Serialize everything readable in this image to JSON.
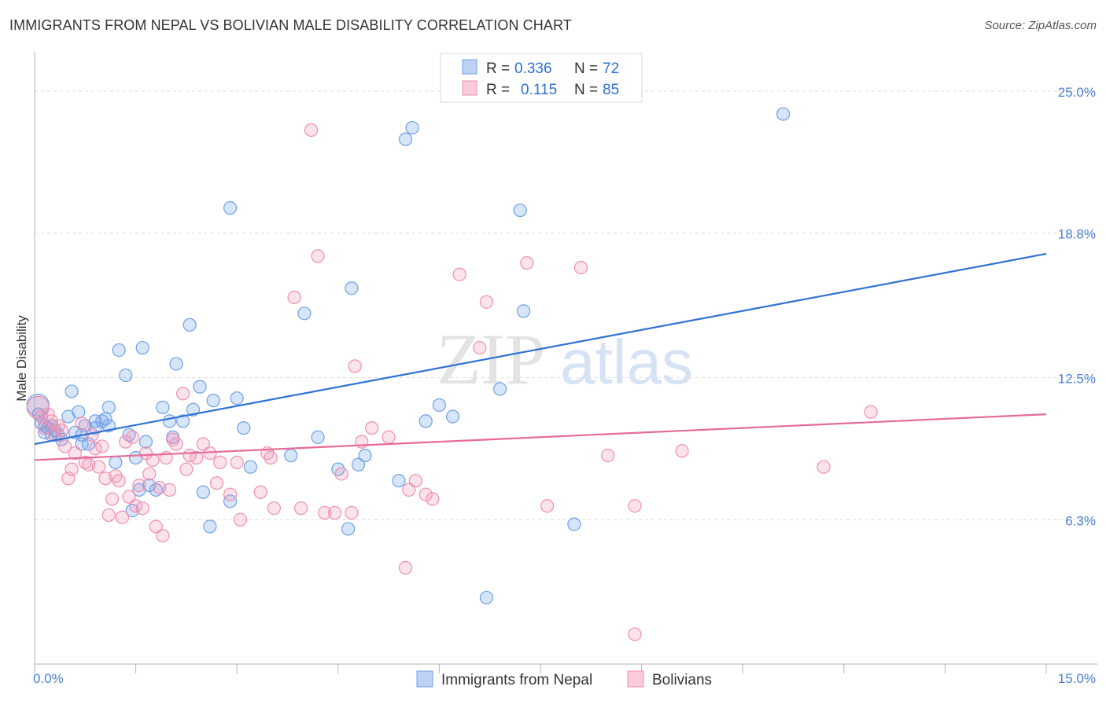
{
  "title": "IMMIGRANTS FROM NEPAL VS BOLIVIAN MALE DISABILITY CORRELATION CHART",
  "source": "Source: ZipAtlas.com",
  "watermark": {
    "zip": "ZIP",
    "atlas": "atlas"
  },
  "legend_top": [
    {
      "r_label": "R =",
      "r_value": "0.336",
      "n_label": "N =",
      "n_value": "72",
      "color": "#6fa0e8"
    },
    {
      "r_label": "R =",
      "r_value": "0.115",
      "n_label": "N =",
      "n_value": "85",
      "color": "#f08fb0"
    }
  ],
  "chart_data": {
    "type": "scatter",
    "xlabel": "",
    "ylabel": "Male Disability",
    "xlim": [
      0,
      15
    ],
    "ylim": [
      0,
      26.3
    ],
    "x_tick_labels": [
      "0.0%",
      "15.0%"
    ],
    "y_ticks": [
      6.3,
      12.5,
      18.8,
      25.0
    ],
    "y_tick_labels": [
      "6.3%",
      "12.5%",
      "18.8%",
      "25.0%"
    ],
    "grid": "horizontal-dashed",
    "legend_position": "bottom-center",
    "series": [
      {
        "name": "Immigrants from Nepal",
        "color": "#6fa0e8",
        "trend": {
          "x": [
            0,
            15
          ],
          "y": [
            9.6,
            17.9
          ]
        },
        "points": [
          [
            0.05,
            11.3
          ],
          [
            0.06,
            10.9
          ],
          [
            0.1,
            10.5
          ],
          [
            0.15,
            10.1
          ],
          [
            0.2,
            10.3
          ],
          [
            0.25,
            10.4
          ],
          [
            0.3,
            10.2
          ],
          [
            0.35,
            10.0
          ],
          [
            0.4,
            9.8
          ],
          [
            0.5,
            10.8
          ],
          [
            0.55,
            11.9
          ],
          [
            0.6,
            10.1
          ],
          [
            0.65,
            11.0
          ],
          [
            0.7,
            10.0
          ],
          [
            0.75,
            10.4
          ],
          [
            0.8,
            9.6
          ],
          [
            0.9,
            10.6
          ],
          [
            1.0,
            10.6
          ],
          [
            1.05,
            10.7
          ],
          [
            1.1,
            11.2
          ],
          [
            1.1,
            10.4
          ],
          [
            1.2,
            8.8
          ],
          [
            1.25,
            13.7
          ],
          [
            1.35,
            12.6
          ],
          [
            1.4,
            10.0
          ],
          [
            1.45,
            6.7
          ],
          [
            1.55,
            7.6
          ],
          [
            1.6,
            13.8
          ],
          [
            1.65,
            9.7
          ],
          [
            1.7,
            7.8
          ],
          [
            1.8,
            7.6
          ],
          [
            1.9,
            11.2
          ],
          [
            2.0,
            10.6
          ],
          [
            2.05,
            9.9
          ],
          [
            2.1,
            13.1
          ],
          [
            2.2,
            10.6
          ],
          [
            2.3,
            14.8
          ],
          [
            2.35,
            11.1
          ],
          [
            2.45,
            12.1
          ],
          [
            2.5,
            7.5
          ],
          [
            2.6,
            6.0
          ],
          [
            2.9,
            7.1
          ],
          [
            3.0,
            11.6
          ],
          [
            3.1,
            10.3
          ],
          [
            2.9,
            19.9
          ],
          [
            3.2,
            8.6
          ],
          [
            3.8,
            9.1
          ],
          [
            4.0,
            15.3
          ],
          [
            4.2,
            9.9
          ],
          [
            4.5,
            8.5
          ],
          [
            4.65,
            5.9
          ],
          [
            4.7,
            16.4
          ],
          [
            4.8,
            8.7
          ],
          [
            4.9,
            9.1
          ],
          [
            5.4,
            8.0
          ],
          [
            5.5,
            22.9
          ],
          [
            5.6,
            23.4
          ],
          [
            5.8,
            10.6
          ],
          [
            6.0,
            11.3
          ],
          [
            6.2,
            10.8
          ],
          [
            6.7,
            2.9
          ],
          [
            6.9,
            12.0
          ],
          [
            7.2,
            19.8
          ],
          [
            7.25,
            15.4
          ],
          [
            8.0,
            6.1
          ],
          [
            11.1,
            24.0
          ],
          [
            0.7,
            9.6
          ],
          [
            0.15,
            10.4
          ],
          [
            0.25,
            10.0
          ],
          [
            0.9,
            10.3
          ],
          [
            1.5,
            9.0
          ],
          [
            2.65,
            11.5
          ]
        ]
      },
      {
        "name": "Bolivians",
        "color": "#f08fb0",
        "trend": {
          "x": [
            0,
            15
          ],
          "y": [
            8.9,
            10.9
          ]
        },
        "points": [
          [
            0.05,
            11.2
          ],
          [
            0.1,
            10.8
          ],
          [
            0.15,
            10.3
          ],
          [
            0.2,
            10.9
          ],
          [
            0.25,
            10.6
          ],
          [
            0.3,
            10.0
          ],
          [
            0.35,
            10.4
          ],
          [
            0.4,
            10.2
          ],
          [
            0.45,
            9.5
          ],
          [
            0.5,
            8.1
          ],
          [
            0.55,
            8.5
          ],
          [
            0.6,
            9.2
          ],
          [
            0.7,
            10.5
          ],
          [
            0.75,
            8.8
          ],
          [
            0.8,
            8.7
          ],
          [
            0.85,
            10.0
          ],
          [
            0.9,
            9.4
          ],
          [
            0.95,
            8.6
          ],
          [
            1.0,
            9.5
          ],
          [
            1.05,
            8.1
          ],
          [
            1.1,
            6.5
          ],
          [
            1.15,
            7.2
          ],
          [
            1.2,
            8.2
          ],
          [
            1.25,
            8.0
          ],
          [
            1.3,
            6.4
          ],
          [
            1.35,
            9.7
          ],
          [
            1.4,
            7.3
          ],
          [
            1.45,
            9.9
          ],
          [
            1.5,
            6.9
          ],
          [
            1.55,
            7.8
          ],
          [
            1.6,
            6.8
          ],
          [
            1.65,
            9.2
          ],
          [
            1.7,
            8.3
          ],
          [
            1.75,
            8.9
          ],
          [
            1.8,
            6.0
          ],
          [
            1.85,
            7.7
          ],
          [
            1.9,
            5.6
          ],
          [
            1.95,
            9.0
          ],
          [
            2.0,
            7.6
          ],
          [
            2.05,
            9.8
          ],
          [
            2.1,
            9.6
          ],
          [
            2.2,
            11.8
          ],
          [
            2.25,
            8.5
          ],
          [
            2.3,
            9.1
          ],
          [
            2.4,
            9.0
          ],
          [
            2.5,
            9.6
          ],
          [
            2.6,
            9.2
          ],
          [
            2.7,
            7.9
          ],
          [
            2.75,
            8.8
          ],
          [
            2.9,
            7.4
          ],
          [
            3.0,
            8.8
          ],
          [
            3.05,
            6.3
          ],
          [
            3.35,
            7.5
          ],
          [
            3.45,
            9.2
          ],
          [
            3.5,
            9.0
          ],
          [
            3.55,
            6.8
          ],
          [
            3.85,
            16.0
          ],
          [
            3.95,
            6.8
          ],
          [
            4.1,
            23.3
          ],
          [
            4.2,
            17.8
          ],
          [
            4.3,
            6.6
          ],
          [
            4.45,
            6.6
          ],
          [
            4.55,
            8.3
          ],
          [
            4.7,
            6.6
          ],
          [
            4.75,
            13.0
          ],
          [
            4.85,
            9.7
          ],
          [
            5.0,
            10.3
          ],
          [
            5.25,
            9.9
          ],
          [
            5.5,
            4.2
          ],
          [
            5.55,
            7.6
          ],
          [
            5.65,
            8.0
          ],
          [
            5.8,
            7.4
          ],
          [
            5.9,
            7.2
          ],
          [
            6.3,
            17.0
          ],
          [
            6.6,
            13.8
          ],
          [
            6.7,
            15.8
          ],
          [
            7.3,
            17.5
          ],
          [
            7.6,
            6.9
          ],
          [
            8.1,
            17.3
          ],
          [
            8.5,
            9.1
          ],
          [
            8.9,
            6.9
          ],
          [
            8.9,
            1.3
          ],
          [
            9.6,
            9.3
          ],
          [
            11.7,
            8.6
          ],
          [
            12.4,
            11.0
          ]
        ]
      }
    ]
  }
}
